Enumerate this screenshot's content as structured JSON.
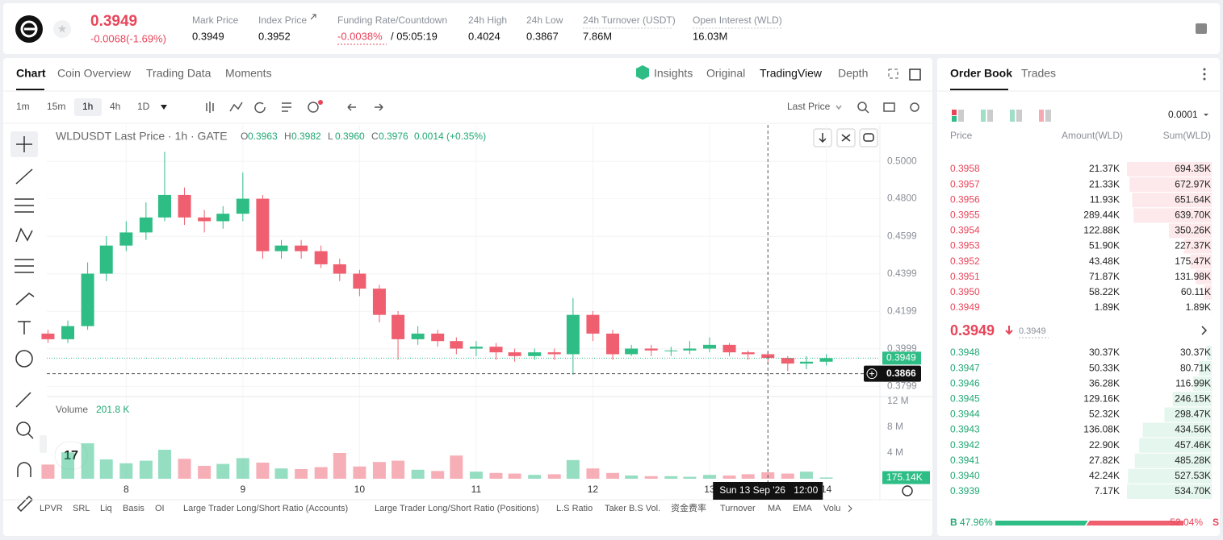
{
  "header": {
    "price": "0.3949",
    "change": "-0.0068(-1.69%)",
    "stats": [
      {
        "label": "Mark Price",
        "value": "0.3949"
      },
      {
        "label": "Index Price",
        "value": "0.3952"
      },
      {
        "label": "Funding Rate/Countdown",
        "value": "-0.0038%",
        "extra": "/ 05:05:19"
      },
      {
        "label": "24h High",
        "value": "0.4024"
      },
      {
        "label": "24h Low",
        "value": "0.3867"
      },
      {
        "label": "24h Turnover (USDT)",
        "value": "7.86M"
      },
      {
        "label": "Open Interest (WLD)",
        "value": "16.03M"
      }
    ]
  },
  "tabs": [
    "Chart",
    "Coin Overview",
    "Trading Data",
    "Moments"
  ],
  "views": [
    "Insights",
    "Original",
    "TradingView",
    "Depth"
  ],
  "intervals": [
    "1m",
    "15m",
    "1h",
    "4h",
    "1D"
  ],
  "price_type": "Last Price",
  "indicators": [
    "LPVR",
    "SRL",
    "Liq",
    "Basis",
    "OI",
    "Large Trader Long/Short Ratio (Accounts)",
    "Large Trader Long/Short Ratio (Positions)",
    "L.S Ratio",
    "Taker B.S Vol.",
    "资金费率",
    "Turnover",
    "MA",
    "EMA",
    "Volu"
  ],
  "chart_data": {
    "type": "candlestick",
    "title": "WLDUSDT Last Price · 1h · GATE",
    "legend": [
      {
        "key": "O",
        "value": "0.3963"
      },
      {
        "key": "H",
        "value": "0.3982"
      },
      {
        "key": "L",
        "value": "0.3960"
      },
      {
        "key": "C",
        "value": "0.3976"
      }
    ],
    "legend_change": "0.0014 (+0.35%)",
    "x": [
      7.33,
      7.5,
      7.67,
      7.83,
      8,
      8.17,
      8.33,
      8.5,
      8.67,
      8.83,
      9,
      9.17,
      9.33,
      9.5,
      9.67,
      9.83,
      10,
      10.17,
      10.33,
      10.5,
      10.67,
      10.83,
      11,
      11.17,
      11.33,
      11.5,
      11.67,
      11.83,
      12,
      12.17,
      12.33,
      12.5,
      12.67,
      12.83,
      13,
      13.17,
      13.33,
      13.5,
      13.67,
      13.83,
      14
    ],
    "open": [
      0.408,
      0.405,
      0.412,
      0.44,
      0.455,
      0.462,
      0.47,
      0.482,
      0.47,
      0.468,
      0.472,
      0.48,
      0.452,
      0.455,
      0.452,
      0.445,
      0.44,
      0.432,
      0.418,
      0.405,
      0.408,
      0.404,
      0.4,
      0.401,
      0.398,
      0.396,
      0.398,
      0.397,
      0.418,
      0.408,
      0.397,
      0.4,
      0.399,
      0.399,
      0.4,
      0.402,
      0.398,
      0.397,
      0.395,
      0.392,
      0.393
    ],
    "high": [
      0.41,
      0.415,
      0.446,
      0.46,
      0.468,
      0.478,
      0.505,
      0.486,
      0.474,
      0.476,
      0.494,
      0.482,
      0.458,
      0.458,
      0.455,
      0.448,
      0.442,
      0.434,
      0.42,
      0.412,
      0.41,
      0.406,
      0.404,
      0.403,
      0.4,
      0.4,
      0.4,
      0.427,
      0.42,
      0.41,
      0.402,
      0.402,
      0.401,
      0.404,
      0.406,
      0.403,
      0.399,
      0.398,
      0.396,
      0.396,
      0.397
    ],
    "low": [
      0.403,
      0.403,
      0.41,
      0.436,
      0.452,
      0.458,
      0.468,
      0.466,
      0.462,
      0.464,
      0.468,
      0.448,
      0.448,
      0.448,
      0.443,
      0.436,
      0.428,
      0.414,
      0.394,
      0.402,
      0.401,
      0.397,
      0.396,
      0.394,
      0.393,
      0.394,
      0.394,
      0.386,
      0.404,
      0.394,
      0.396,
      0.396,
      0.396,
      0.397,
      0.398,
      0.396,
      0.394,
      0.392,
      0.388,
      0.389,
      0.391
    ],
    "close": [
      0.405,
      0.412,
      0.44,
      0.455,
      0.462,
      0.47,
      0.482,
      0.47,
      0.468,
      0.472,
      0.48,
      0.452,
      0.455,
      0.452,
      0.445,
      0.44,
      0.432,
      0.418,
      0.405,
      0.408,
      0.404,
      0.4,
      0.401,
      0.398,
      0.396,
      0.398,
      0.397,
      0.418,
      0.408,
      0.397,
      0.4,
      0.399,
      0.399,
      0.4,
      0.402,
      0.398,
      0.397,
      0.395,
      0.392,
      0.393,
      0.3949
    ],
    "volume": [
      2200000,
      4100000,
      5500000,
      3000000,
      2400000,
      2800000,
      4500000,
      3100000,
      2000000,
      2300000,
      3200000,
      2500000,
      1600000,
      1500000,
      1800000,
      4000000,
      1900000,
      2600000,
      2800000,
      1400000,
      1200000,
      3600000,
      1100000,
      900000,
      800000,
      600000,
      700000,
      2900000,
      1600000,
      900000,
      500000,
      400000,
      400000,
      300000,
      600000,
      500000,
      700000,
      1000000,
      800000,
      1100000,
      200000
    ],
    "xlim": [
      7.32,
      14.46
    ],
    "xticks": [
      8,
      9,
      10,
      11,
      12,
      13,
      14
    ],
    "ylim": [
      0.3744,
      0.5194
    ],
    "yticks": [
      {
        "value": 0.5,
        "label": "0.5000"
      },
      {
        "value": 0.48,
        "label": "0.4800"
      },
      0.4599,
      0.4399,
      0.4199,
      0.3999,
      0.3799
    ],
    "volume_label": "Volume",
    "volume_legend": "201.8 K",
    "vol_ylim": [
      0,
      12750000
    ],
    "vol_yticks": [
      {
        "value": 12000000,
        "label": "12 M"
      },
      {
        "value": 8000000,
        "label": "8 M"
      },
      {
        "value": 4000000,
        "label": "4 M"
      }
    ],
    "volume_badge": {
      "value": 175140,
      "label": "175.14K"
    },
    "last_price": 0.3949,
    "crosshair": {
      "price": 0.3866,
      "x": 13.5,
      "date": "Sun 13 Sep '26",
      "time": "12:00"
    },
    "up_color": "#2ebd85",
    "down_color": "#ef5f6f",
    "grid": true
  },
  "order_book": {
    "tabs": [
      "Order Book",
      "Trades"
    ],
    "precision": "0.0001",
    "headers": [
      "Price",
      "Amount(WLD)",
      "Sum(WLD)"
    ],
    "asks": {
      "price": [
        "0.3958",
        "0.3957",
        "0.3956",
        "0.3955",
        "0.3954",
        "0.3953",
        "0.3952",
        "0.3951",
        "0.3950",
        "0.3949"
      ],
      "amount": [
        "21.37K",
        "21.33K",
        "11.93K",
        "289.44K",
        "122.88K",
        "51.90K",
        "43.48K",
        "71.87K",
        "58.22K",
        "1.89K"
      ],
      "values": [
        694350,
        672970,
        651640,
        639700,
        350260,
        227370,
        175470,
        131980,
        60110,
        1890
      ],
      "value_labels": [
        "694.35K",
        "672.97K",
        "651.64K",
        "639.70K",
        "350.26K",
        "227.37K",
        "175.47K",
        "131.98K",
        "60.11K",
        "1.89K"
      ]
    },
    "mid_price": "0.3949",
    "mark_price": "0.3949",
    "bids": {
      "price": [
        "0.3948",
        "0.3947",
        "0.3946",
        "0.3945",
        "0.3944",
        "0.3943",
        "0.3942",
        "0.3941",
        "0.3940",
        "0.3939"
      ],
      "amount": [
        "30.37K",
        "50.33K",
        "36.28K",
        "129.16K",
        "52.32K",
        "136.08K",
        "22.90K",
        "27.82K",
        "42.24K",
        "7.17K"
      ],
      "values": [
        30370,
        80710,
        116990,
        246150,
        298470,
        434560,
        457460,
        485280,
        527530,
        534700
      ],
      "value_labels": [
        "30.37K",
        "80.71K",
        "116.99K",
        "246.15K",
        "298.47K",
        "434.56K",
        "457.46K",
        "485.28K",
        "527.53K",
        "534.70K"
      ]
    },
    "ratio": {
      "buy_letter": "B",
      "sell_letter": "S",
      "buy": {
        "value": 47.96,
        "label": "47.96%"
      },
      "sell": {
        "value": 52.04,
        "label": "52.04%"
      }
    }
  }
}
